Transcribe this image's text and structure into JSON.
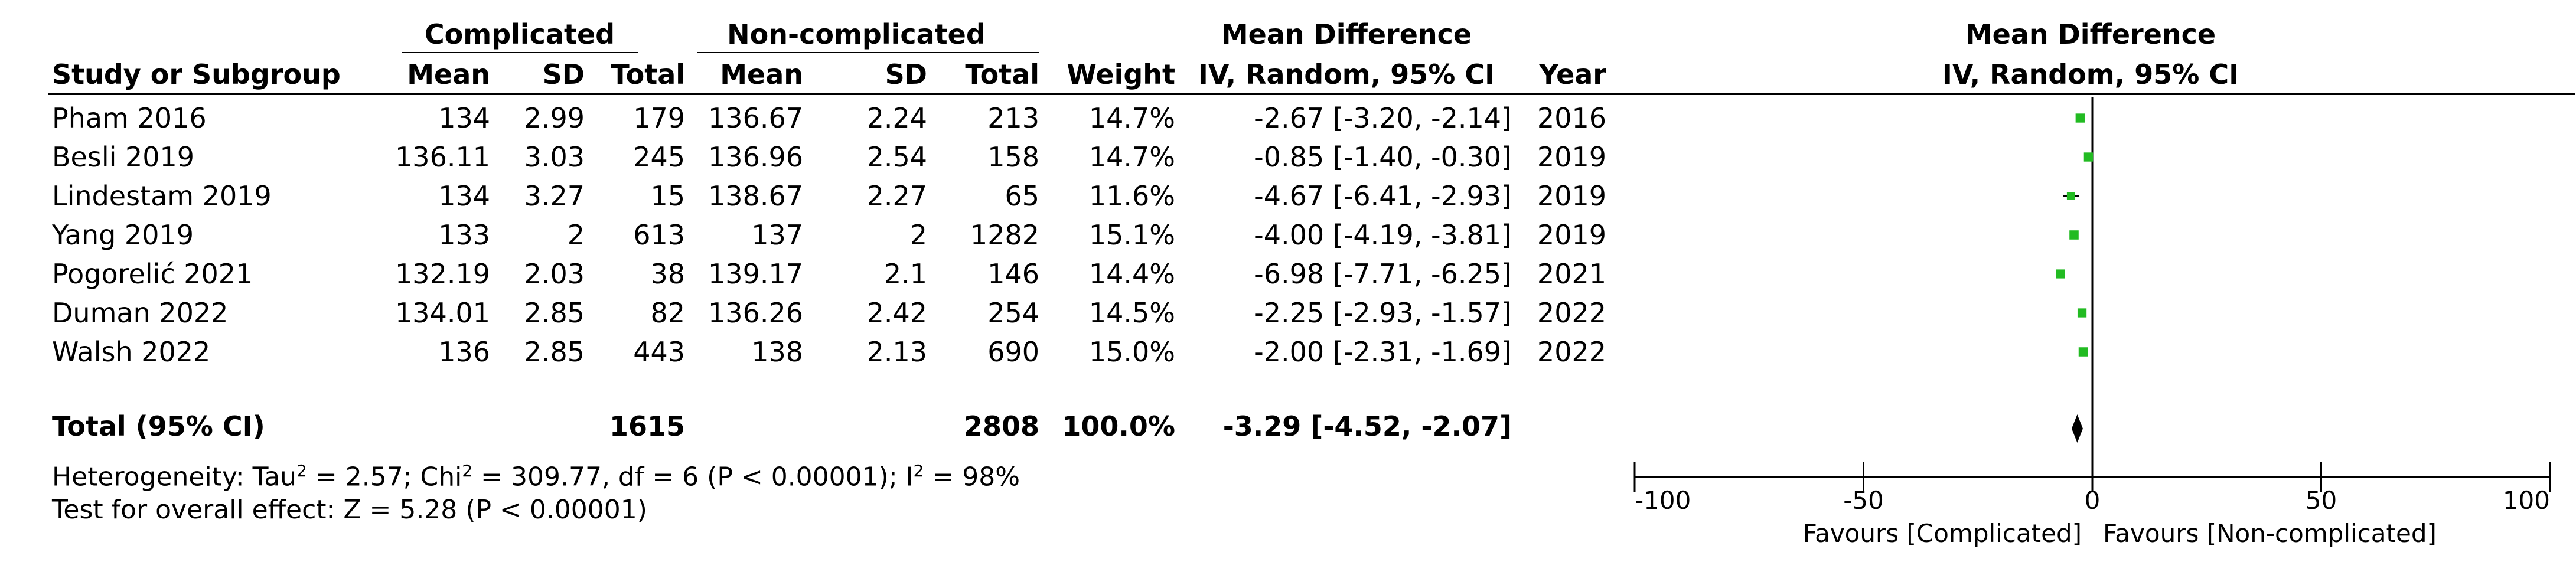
{
  "headers": {
    "group1": "Complicated",
    "group2": "Non-complicated",
    "effect_top": "Mean Difference",
    "effect_sub": "IV, Random, 95% CI",
    "plot_top": "Mean Difference",
    "plot_sub": "IV, Random, 95% CI",
    "study": "Study or Subgroup",
    "mean1": "Mean",
    "sd1": "SD",
    "total1": "Total",
    "mean2": "Mean",
    "sd2": "SD",
    "total2": "Total",
    "weight": "Weight",
    "year": "Year"
  },
  "studies": [
    {
      "name": "Pham 2016",
      "mean1": "134",
      "sd1": "2.99",
      "total1": "179",
      "mean2": "136.67",
      "sd2": "2.24",
      "total2": "213",
      "weight": "14.7%",
      "ci": "-2.67 [-3.20, -2.14]",
      "year": "2016"
    },
    {
      "name": "Besli 2019",
      "mean1": "136.11",
      "sd1": "3.03",
      "total1": "245",
      "mean2": "136.96",
      "sd2": "2.54",
      "total2": "158",
      "weight": "14.7%",
      "ci": "-0.85 [-1.40, -0.30]",
      "year": "2019"
    },
    {
      "name": "Lindestam 2019",
      "mean1": "134",
      "sd1": "3.27",
      "total1": "15",
      "mean2": "138.67",
      "sd2": "2.27",
      "total2": "65",
      "weight": "11.6%",
      "ci": "-4.67 [-6.41, -2.93]",
      "year": "2019"
    },
    {
      "name": "Yang 2019",
      "mean1": "133",
      "sd1": "2",
      "total1": "613",
      "mean2": "137",
      "sd2": "2",
      "total2": "1282",
      "weight": "15.1%",
      "ci": "-4.00 [-4.19, -3.81]",
      "year": "2019"
    },
    {
      "name": "Pogorelić 2021",
      "mean1": "132.19",
      "sd1": "2.03",
      "total1": "38",
      "mean2": "139.17",
      "sd2": "2.1",
      "total2": "146",
      "weight": "14.4%",
      "ci": "-6.98 [-7.71, -6.25]",
      "year": "2021"
    },
    {
      "name": "Duman 2022",
      "mean1": "134.01",
      "sd1": "2.85",
      "total1": "82",
      "mean2": "136.26",
      "sd2": "2.42",
      "total2": "254",
      "weight": "14.5%",
      "ci": "-2.25 [-2.93, -1.57]",
      "year": "2022"
    },
    {
      "name": "Walsh 2022",
      "mean1": "136",
      "sd1": "2.85",
      "total1": "443",
      "mean2": "138",
      "sd2": "2.13",
      "total2": "690",
      "weight": "15.0%",
      "ci": "-2.00 [-2.31, -1.69]",
      "year": "2022"
    }
  ],
  "total": {
    "label": "Total (95% CI)",
    "total1": "1615",
    "total2": "2808",
    "weight": "100.0%",
    "ci": "-3.29 [-4.52, -2.07]"
  },
  "heterogeneity": {
    "prefix": "Heterogeneity: Tau",
    "tau_exp": "2",
    "mid": " = 2.57; Chi",
    "chi_exp": "2",
    "mid2": " = 309.77, df = 6 (P < 0.00001); I",
    "i_exp": "2",
    "suffix": " = 98%"
  },
  "overall_test": "Test for overall effect: Z = 5.28 (P < 0.00001)",
  "colors": {
    "marker": "#22bb22",
    "ink": "#000000"
  },
  "chart_data": {
    "type": "scatter",
    "subtype": "forest plot",
    "effect_measure": "Mean Difference (IV, Random, 95% CI)",
    "studies": [
      "Pham 2016",
      "Besli 2019",
      "Lindestam 2019",
      "Yang 2019",
      "Pogorelić 2021",
      "Duman 2022",
      "Walsh 2022"
    ],
    "estimates": [
      -2.67,
      -0.85,
      -4.67,
      -4.0,
      -6.98,
      -2.25,
      -2.0
    ],
    "ci_lower": [
      -3.2,
      -1.4,
      -6.41,
      -4.19,
      -7.71,
      -2.93,
      -2.31
    ],
    "ci_upper": [
      -2.14,
      -0.3,
      -2.93,
      -3.81,
      -6.25,
      -1.57,
      -1.69
    ],
    "weights": [
      14.7,
      14.7,
      11.6,
      15.1,
      14.4,
      14.5,
      15.0
    ],
    "pooled": {
      "estimate": -3.29,
      "ci_lower": -4.52,
      "ci_upper": -2.07
    },
    "xlim": [
      -100,
      100
    ],
    "x_ticks": [
      -100,
      -50,
      0,
      50,
      100
    ],
    "x_tick_labels": [
      "-100",
      "-50",
      "0",
      "50",
      "100"
    ],
    "xlabel_left": "Favours [Complicated]",
    "xlabel_right": "Favours [Non-complicated]",
    "grid": false
  }
}
